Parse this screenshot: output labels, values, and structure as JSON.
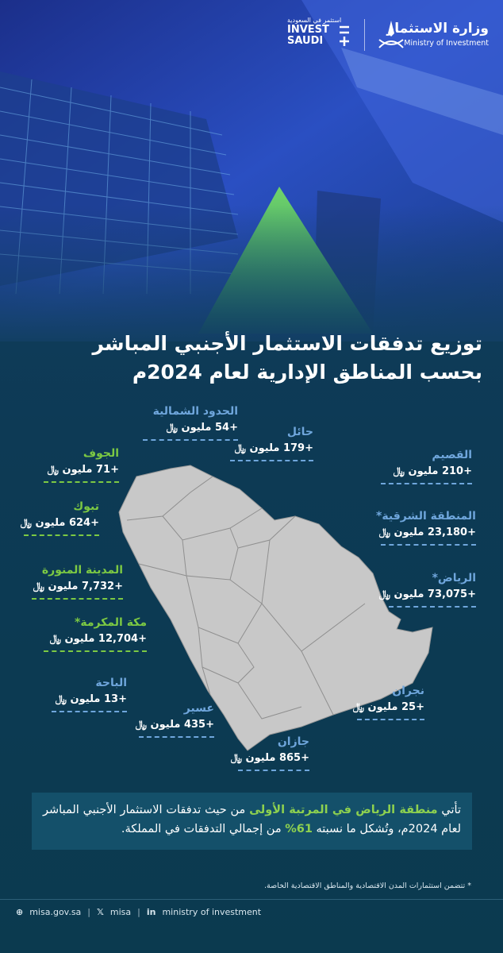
{
  "header": {
    "ministry_ar": "وزارة الاستثمار",
    "ministry_en": "Ministry of Investment",
    "invest_tagline": "استثمر في السعودية",
    "invest_line1": "INVEST",
    "invest_line2": "SAUDI"
  },
  "title": {
    "line1": "توزيع تدفقات الاستثمار الأجنبي المباشر",
    "line2": "بحسب المناطق الإدارية لعام 2024م"
  },
  "regions": [
    {
      "name": "الحدود الشمالية",
      "value": "+54 مليون ﷼"
    },
    {
      "name": "حائل",
      "value": "+179 مليون ﷼"
    },
    {
      "name": "الجوف",
      "value": "+71 مليون ﷼"
    },
    {
      "name": "القصيم",
      "value": "+210 مليون ﷼"
    },
    {
      "name": "تبوك",
      "value": "+624 مليون ﷼"
    },
    {
      "name": "المنطقة الشرقية*",
      "value": "+23,180 مليون ﷼"
    },
    {
      "name": "المدينة المنورة",
      "value": "+7,732 مليون ﷼"
    },
    {
      "name": "الرياض*",
      "value": "+73,075 مليون ﷼"
    },
    {
      "name": "مكة المكرمة*",
      "value": "+12,704 مليون ﷼"
    },
    {
      "name": "الباحة",
      "value": "+13 مليون ﷼"
    },
    {
      "name": "نجران",
      "value": "+25 مليون ﷼"
    },
    {
      "name": "عسير",
      "value": "+435 مليون ﷼"
    },
    {
      "name": "جازان",
      "value": "+865 مليون ﷼"
    }
  ],
  "summary": {
    "parts": [
      "تأتي ",
      "منطقة الرياض في المرتبة الأولى",
      " من حيث تدفقات الاستثمار الأجنبي المباشر لعام 2024م، وتُشكل ما نسبته ",
      "61%",
      " من إجمالي التدفقات في المملكة."
    ]
  },
  "footnote": "* تتضمن استثمارات المدن الاقتصادية والمناطق الاقتصادية الخاصة.",
  "footer": {
    "website": "misa.gov.sa",
    "x_handle": "misa",
    "linkedin": "ministry of investment"
  }
}
